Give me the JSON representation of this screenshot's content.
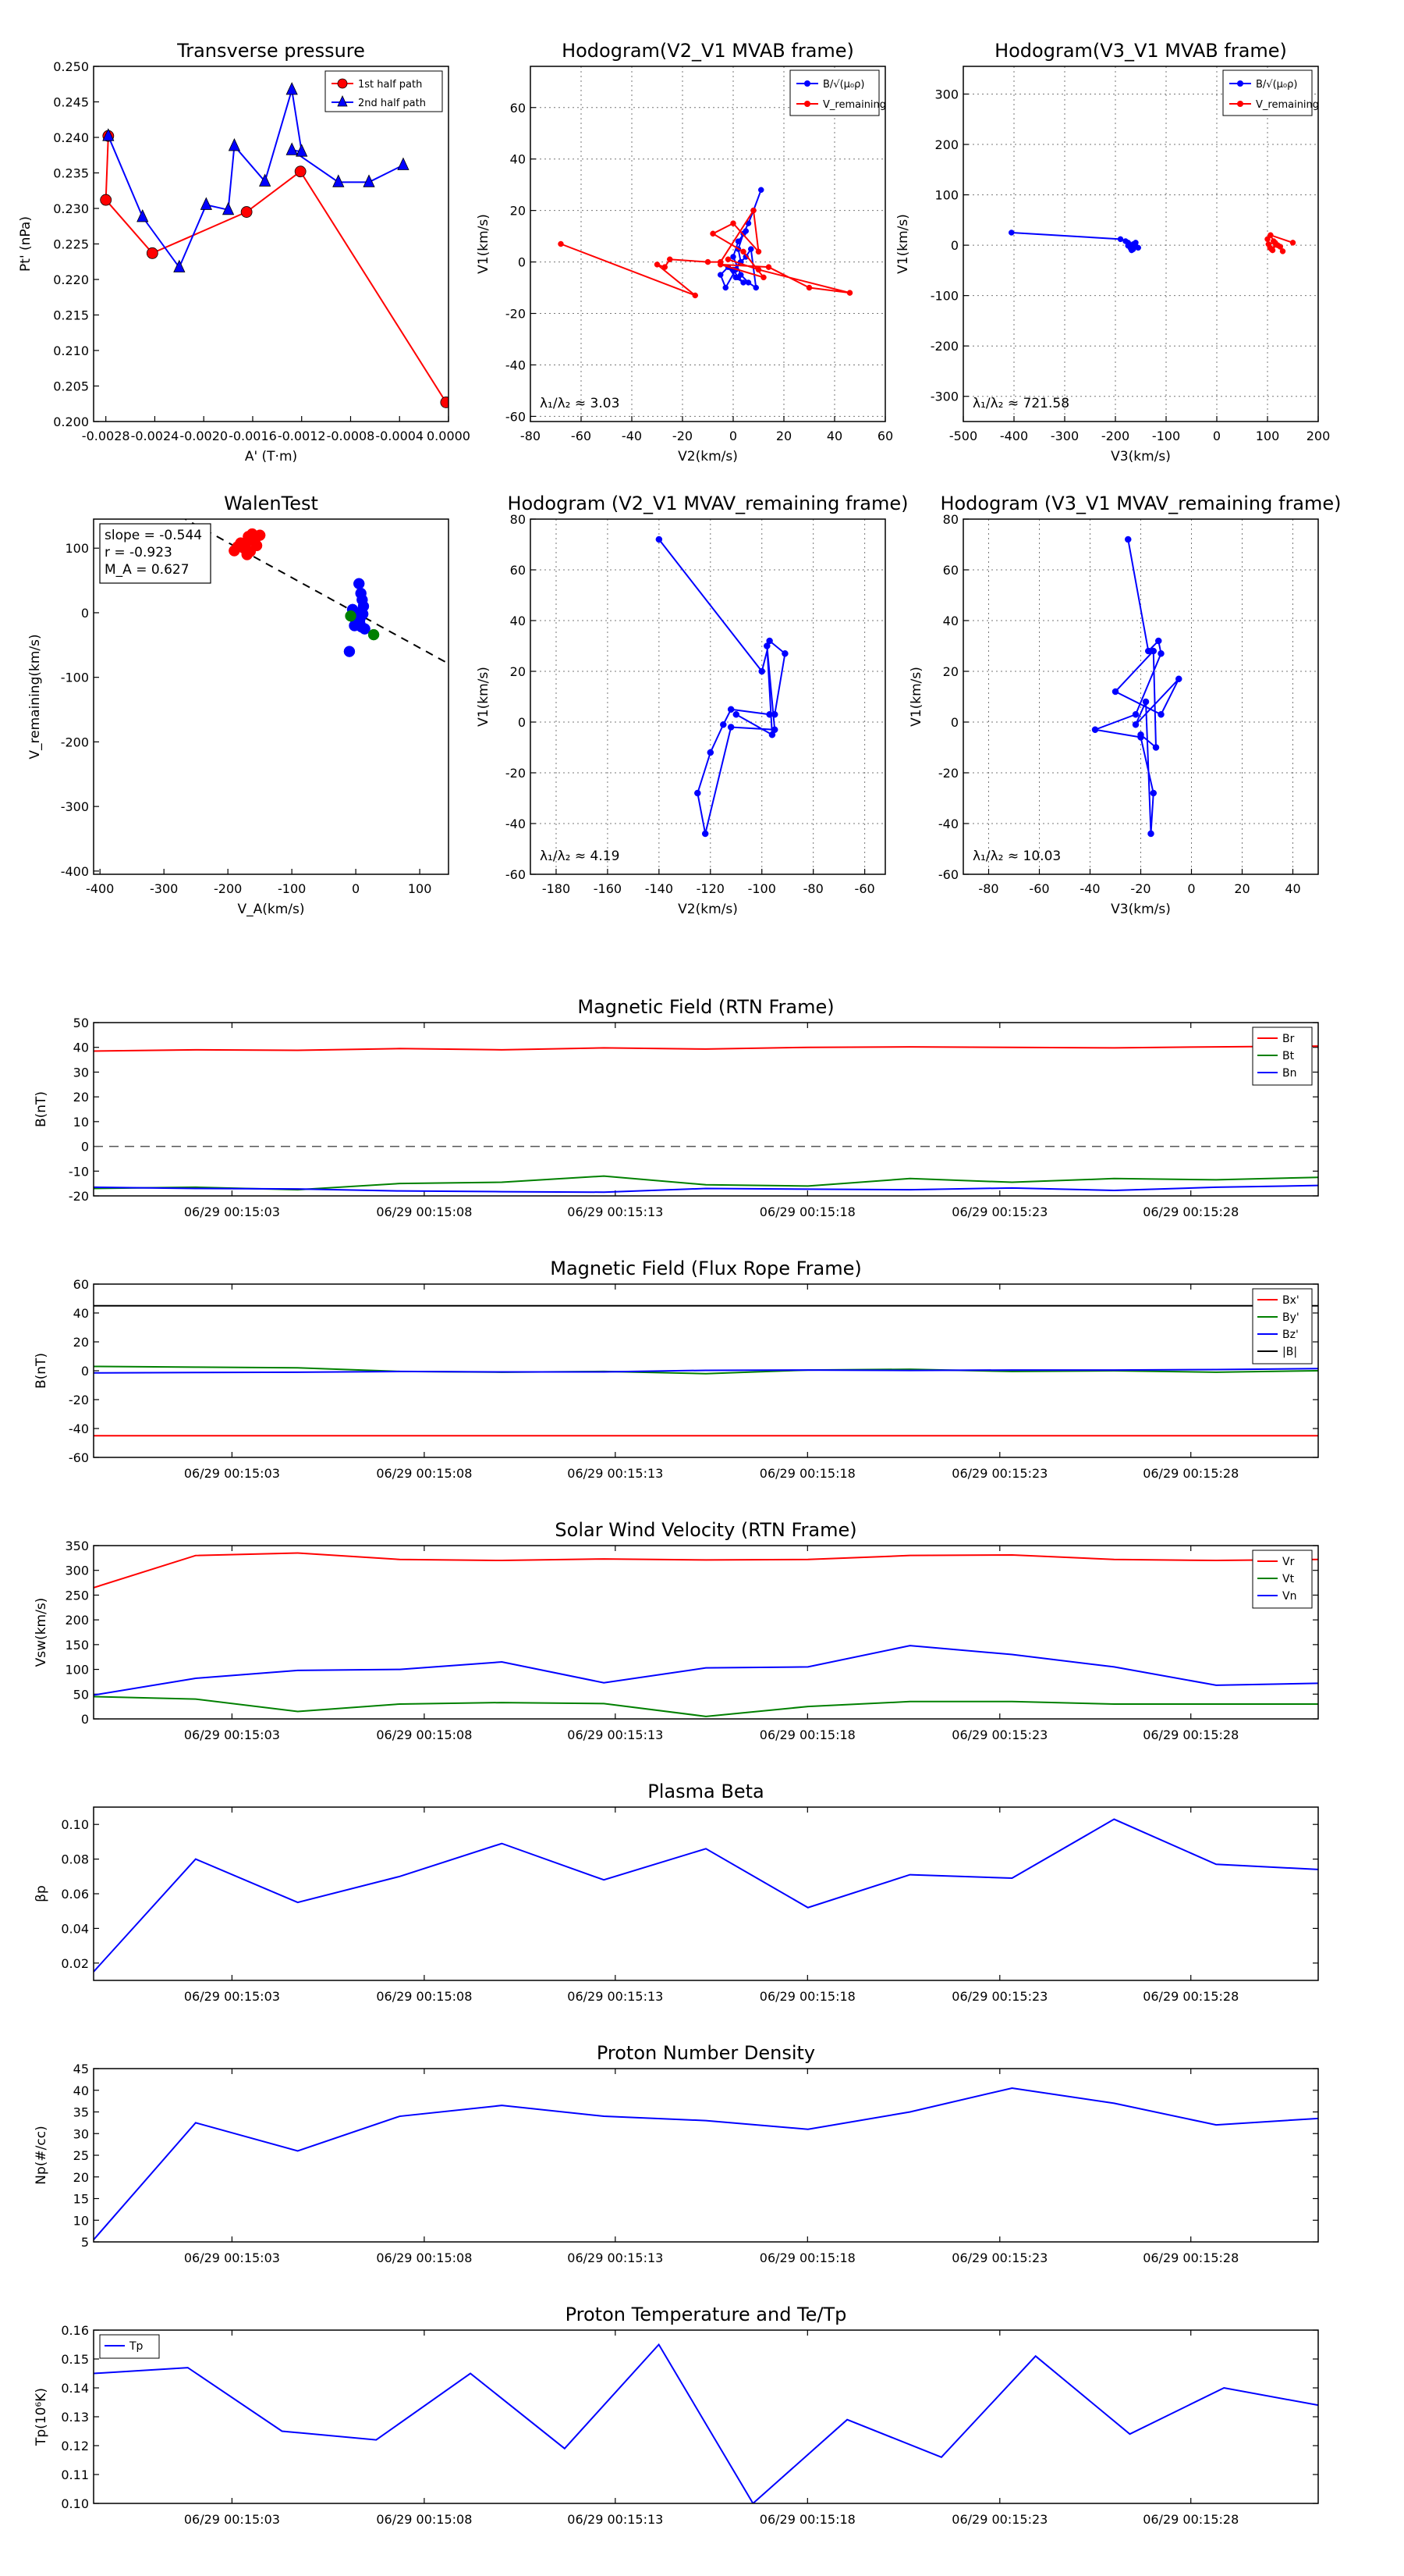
{
  "time_ticks": [
    "06/29 00:15:03",
    "06/29 00:15:08",
    "06/29 00:15:13",
    "06/29 00:15:18",
    "06/29 00:15:23",
    "06/29 00:15:28"
  ],
  "chart_data": [
    {
      "id": "tp",
      "type": "scatter",
      "title": "Transverse pressure",
      "xlabel": "A' (T·m)",
      "ylabel": "Pt' (nPa)",
      "xlim": [
        -0.0029,
        0.0
      ],
      "ylim": [
        0.2,
        0.25
      ],
      "xticks": [
        -0.0028,
        -0.0024,
        -0.002,
        -0.0016,
        -0.0012,
        -0.0008,
        -0.0004,
        0.0
      ],
      "xtick_labels": [
        "-0.0028",
        "-0.0024",
        "-0.0020",
        "-0.0016",
        "-0.0012",
        "-0.0008",
        "-0.0004",
        "0.0000"
      ],
      "yticks": [
        0.2,
        0.205,
        0.21,
        0.215,
        0.22,
        0.225,
        0.23,
        0.235,
        0.24,
        0.245,
        0.25
      ],
      "ytick_labels": [
        "0.200",
        "0.205",
        "0.210",
        "0.215",
        "0.220",
        "0.225",
        "0.230",
        "0.235",
        "0.240",
        "0.245",
        "0.250"
      ],
      "legend": [
        "1st half path",
        "2nd half path"
      ],
      "series": [
        {
          "name": "1st half path",
          "color": "#ff0000",
          "marker": "circle",
          "x": [
            -2e-05,
            -0.00121,
            -0.00165,
            -0.00242,
            -0.0028,
            -0.00278
          ],
          "y": [
            0.2027,
            0.2352,
            0.2295,
            0.2237,
            0.2312,
            0.2402
          ]
        },
        {
          "name": "2nd half path",
          "color": "#0000ff",
          "marker": "triangle",
          "x": [
            -0.00278,
            -0.0025,
            -0.0022,
            -0.00198,
            -0.0018,
            -0.00175,
            -0.0015,
            -0.00128,
            -0.0012,
            -0.00128,
            -0.0009,
            -0.00065,
            -0.00037
          ],
          "y": [
            0.2402,
            0.2288,
            0.2217,
            0.2305,
            0.2298,
            0.2388,
            0.2338,
            0.2467,
            0.238,
            0.2382,
            0.2337,
            0.2337,
            0.2361
          ]
        }
      ]
    },
    {
      "id": "h1",
      "type": "line",
      "title": "Hodogram(V2_V1 MVAB frame)",
      "xlabel": "V2(km/s)",
      "ylabel": "V1(km/s)",
      "xlim": [
        -80,
        60
      ],
      "ylim": [
        -62,
        76
      ],
      "xticks": [
        -80,
        -60,
        -40,
        -20,
        0,
        20,
        40,
        60
      ],
      "yticks": [
        -60,
        -40,
        -20,
        0,
        20,
        40,
        60
      ],
      "legend": [
        "B/√(μ₀ρ)",
        "V_remaining"
      ],
      "annotation": "λ₁/λ₂ ≈ 3.03",
      "series": [
        {
          "name": "B",
          "color": "#0000ff",
          "x": [
            11,
            8,
            6,
            4,
            2,
            3,
            1,
            -3,
            -5,
            -2,
            1,
            4,
            2,
            0,
            3,
            5,
            7,
            9,
            6,
            3,
            0,
            2,
            5
          ],
          "y": [
            28,
            20,
            15,
            11,
            5,
            0,
            -3,
            -10,
            -5,
            -2,
            -6,
            -8,
            -6,
            -3,
            0,
            2,
            5,
            -10,
            -8,
            -5,
            2,
            8,
            12
          ]
        },
        {
          "name": "V_remaining",
          "color": "#ff0000",
          "x": [
            -68,
            -15,
            -30,
            -27,
            -25,
            -10,
            -5,
            8,
            10,
            0,
            -8,
            4,
            12,
            -5,
            14,
            30,
            46,
            10,
            -2
          ],
          "y": [
            7,
            -13,
            -1,
            -2,
            1,
            0,
            0,
            20,
            4,
            15,
            11,
            4,
            -6,
            -1,
            -2,
            -10,
            -12,
            -3,
            1
          ]
        }
      ]
    },
    {
      "id": "h2",
      "type": "line",
      "title": "Hodogram(V3_V1 MVAB frame)",
      "xlabel": "V3(km/s)",
      "ylabel": "V1(km/s)",
      "xlim": [
        -500,
        200
      ],
      "ylim": [
        -350,
        355
      ],
      "xticks": [
        -500,
        -400,
        -300,
        -200,
        -100,
        0,
        100,
        200
      ],
      "yticks": [
        -300,
        -200,
        -100,
        0,
        100,
        200,
        300
      ],
      "legend": [
        "B/√(μ₀ρ)",
        "V_remaining"
      ],
      "annotation": "λ₁/λ₂ ≈ 721.58",
      "series": [
        {
          "name": "B",
          "color": "#0000ff",
          "x": [
            -405,
            -190,
            -180,
            -175,
            -170,
            -165,
            -160,
            -155,
            -165,
            -170,
            -175,
            -168,
            -160
          ],
          "y": [
            25,
            12,
            8,
            5,
            -3,
            -8,
            -2,
            -5,
            2,
            -6,
            -1,
            -10,
            5
          ]
        },
        {
          "name": "V_remaining",
          "color": "#ff0000",
          "x": [
            100,
            105,
            110,
            115,
            102,
            108,
            120,
            130,
            125,
            112,
            106,
            150
          ],
          "y": [
            12,
            -5,
            -10,
            5,
            2,
            -8,
            0,
            -12,
            -3,
            8,
            20,
            5
          ]
        }
      ]
    },
    {
      "id": "walen",
      "type": "scatter",
      "title": "WalenTest",
      "xlabel": "V_A(km/s)",
      "ylabel": "V_remaining(km/s)",
      "xlim": [
        -410,
        145
      ],
      "ylim": [
        -405,
        145
      ],
      "xticks": [
        -400,
        -300,
        -200,
        -100,
        0,
        100
      ],
      "yticks": [
        -400,
        -300,
        -200,
        -100,
        0,
        100
      ],
      "annotations": [
        "slope = -0.544",
        "r = -0.923",
        "M_A = 0.627"
      ],
      "fit_line": {
        "slope": -0.544,
        "x_range": [
          -410,
          145
        ],
        "intercept": 0
      },
      "series": [
        {
          "name": "red",
          "color": "#ff0000",
          "x": [
            -190,
            -175,
            -170,
            -165,
            -160,
            -158,
            -155,
            -165,
            -172,
            -180,
            -168,
            -162,
            -185,
            -170,
            -150,
            -163
          ],
          "y": [
            96,
            100,
            110,
            118,
            120,
            112,
            104,
            95,
            100,
            108,
            118,
            122,
            102,
            90,
            120,
            114
          ]
        },
        {
          "name": "blue",
          "color": "#0000ff",
          "x": [
            5,
            8,
            10,
            12,
            3,
            0,
            -2,
            6,
            14,
            9,
            4,
            1,
            -5,
            -10,
            7,
            11
          ],
          "y": [
            45,
            30,
            20,
            10,
            -5,
            -12,
            -20,
            -15,
            -25,
            -22,
            -18,
            0,
            5,
            -60,
            -8,
            -2
          ]
        },
        {
          "name": "green",
          "color": "#008000",
          "x": [
            28,
            -8
          ],
          "y": [
            -34,
            -5
          ]
        }
      ]
    },
    {
      "id": "h3",
      "type": "line",
      "title": "Hodogram (V2_V1 MVAV_remaining frame)",
      "xlabel": "V2(km/s)",
      "ylabel": "V1(km/s)",
      "xlim": [
        -190,
        -52
      ],
      "ylim": [
        -60,
        80
      ],
      "xticks": [
        -180,
        -160,
        -140,
        -120,
        -100,
        -80,
        -60
      ],
      "yticks": [
        -60,
        -40,
        -20,
        0,
        20,
        40,
        60,
        80
      ],
      "annotation": "λ₁/λ₂ ≈ 4.19",
      "series": [
        {
          "name": "V",
          "color": "#0000ff",
          "x": [
            -140,
            -100,
            -97,
            -91,
            -95,
            -97,
            -112,
            -115,
            -120,
            -125,
            -122,
            -112,
            -95,
            -98,
            -96,
            -110
          ],
          "y": [
            72,
            20,
            32,
            27,
            3,
            3,
            5,
            -1,
            -12,
            -28,
            -44,
            -2,
            -3,
            30,
            -5,
            3
          ]
        }
      ]
    },
    {
      "id": "h4",
      "type": "line",
      "title": "Hodogram (V3_V1 MVAV_remaining frame)",
      "xlabel": "V3(km/s)",
      "ylabel": "V1(km/s)",
      "xlim": [
        -90,
        50
      ],
      "ylim": [
        -60,
        80
      ],
      "xticks": [
        -80,
        -60,
        -40,
        -20,
        0,
        20,
        40
      ],
      "yticks": [
        -60,
        -40,
        -20,
        0,
        20,
        40,
        60,
        80
      ],
      "annotation": "λ₁/λ₂ ≈ 10.03",
      "series": [
        {
          "name": "V",
          "color": "#0000ff",
          "x": [
            -25,
            -17,
            -13,
            -12,
            -22,
            -38,
            -20,
            -15,
            -16,
            -18,
            -22,
            -5,
            -12,
            -30,
            -15,
            -14,
            -20
          ],
          "y": [
            72,
            28,
            32,
            27,
            3,
            -3,
            -6,
            -28,
            -44,
            8,
            -1,
            17,
            3,
            12,
            28,
            -10,
            -5
          ]
        }
      ]
    },
    {
      "id": "bfield_rtn",
      "type": "line",
      "title": "Magnetic Field (RTN Frame)",
      "ylabel": "B(nT)",
      "ylim": [
        -20,
        50
      ],
      "yticks": [
        -20,
        -10,
        0,
        10,
        20,
        30,
        40,
        50
      ],
      "legend": [
        "Br",
        "Bt",
        "Bn"
      ],
      "zero_line": true,
      "series": [
        {
          "name": "Br",
          "color": "#ff0000",
          "values": [
            38.5,
            39,
            38.8,
            39.5,
            39,
            39.8,
            39.3,
            40,
            40.2,
            40,
            39.8,
            40.2,
            40.5
          ]
        },
        {
          "name": "Bt",
          "color": "#008000",
          "values": [
            -17,
            -16.5,
            -17.5,
            -15,
            -14.5,
            -12,
            -15.5,
            -16,
            -13,
            -14.5,
            -13,
            -13.5,
            -12.5
          ]
        },
        {
          "name": "Bn",
          "color": "#0000ff",
          "values": [
            -16.5,
            -17,
            -17.2,
            -18,
            -18.3,
            -18.5,
            -17,
            -17.3,
            -17.5,
            -16.8,
            -17.8,
            -16.5,
            -15.8
          ]
        }
      ]
    },
    {
      "id": "bfield_fr",
      "type": "line",
      "title": "Magnetic Field (Flux Rope Frame)",
      "ylabel": "B(nT)",
      "ylim": [
        -60,
        60
      ],
      "yticks": [
        -60,
        -40,
        -20,
        0,
        20,
        40,
        60
      ],
      "legend": [
        "Bx'",
        "By'",
        "Bz'",
        "|B|"
      ],
      "series": [
        {
          "name": "Bx'",
          "color": "#ff0000",
          "values": [
            -45,
            -45,
            -45,
            -45,
            -45,
            -45,
            -45,
            -45,
            -45,
            -45,
            -45,
            -45,
            -45
          ]
        },
        {
          "name": "By'",
          "color": "#008000",
          "values": [
            3,
            2.5,
            2,
            -0.5,
            -1,
            -0.5,
            -2,
            0.5,
            1,
            -0.5,
            0,
            -1,
            0
          ]
        },
        {
          "name": "Bz'",
          "color": "#0000ff",
          "values": [
            -1.5,
            -1.2,
            -1,
            -0.5,
            -0.8,
            -0.8,
            0.3,
            0.5,
            0.2,
            0.5,
            0.5,
            0.8,
            1.5
          ]
        },
        {
          "name": "|B|",
          "color": "#000000",
          "values": [
            45,
            45,
            45,
            45,
            45,
            45,
            45,
            45,
            45,
            45,
            45,
            45,
            45
          ]
        }
      ]
    },
    {
      "id": "vsw",
      "type": "line",
      "title": "Solar Wind Velocity (RTN Frame)",
      "ylabel": "Vsw(km/s)",
      "ylim": [
        0,
        350
      ],
      "yticks": [
        0,
        50,
        100,
        150,
        200,
        250,
        300,
        350
      ],
      "legend": [
        "Vr",
        "Vt",
        "Vn"
      ],
      "series": [
        {
          "name": "Vr",
          "color": "#ff0000",
          "values": [
            265,
            330,
            335,
            322,
            320,
            323,
            321,
            322,
            330,
            331,
            322,
            320,
            322
          ]
        },
        {
          "name": "Vt",
          "color": "#008000",
          "values": [
            45,
            40,
            15,
            30,
            33,
            31,
            5,
            25,
            35,
            35,
            30,
            30,
            30
          ]
        },
        {
          "name": "Vn",
          "color": "#0000ff",
          "values": [
            48,
            82,
            98,
            100,
            115,
            73,
            103,
            105,
            148,
            130,
            105,
            68,
            72
          ]
        }
      ]
    },
    {
      "id": "beta",
      "type": "line",
      "title": "Plasma Beta",
      "ylabel": "βp",
      "ylim": [
        0.01,
        0.11
      ],
      "yticks": [
        0.02,
        0.04,
        0.06,
        0.08,
        0.1
      ],
      "ytick_labels": [
        "0.02",
        "0.04",
        "0.06",
        "0.08",
        "0.10"
      ],
      "series": [
        {
          "name": "beta",
          "color": "#0000ff",
          "values": [
            0.015,
            0.08,
            0.055,
            0.07,
            0.089,
            0.068,
            0.086,
            0.052,
            0.071,
            0.069,
            0.103,
            0.077,
            0.074
          ]
        }
      ]
    },
    {
      "id": "np",
      "type": "line",
      "title": "Proton Number Density",
      "ylabel": "Np(#/cc)",
      "ylim": [
        5,
        45
      ],
      "yticks": [
        5,
        10,
        15,
        20,
        25,
        30,
        35,
        40,
        45
      ],
      "series": [
        {
          "name": "Np",
          "color": "#0000ff",
          "values": [
            5.5,
            32.5,
            26,
            34,
            36.5,
            34,
            33,
            31,
            35,
            40.5,
            37,
            32,
            33.5
          ]
        }
      ]
    },
    {
      "id": "tp_temp",
      "type": "line",
      "title": "Proton Temperature and Te/Tp",
      "ylabel": "Tp(10⁶K)",
      "ylim": [
        0.1,
        0.16
      ],
      "yticks": [
        0.1,
        0.11,
        0.12,
        0.13,
        0.14,
        0.15,
        0.16
      ],
      "ytick_labels": [
        "0.10",
        "0.11",
        "0.12",
        "0.13",
        "0.14",
        "0.15",
        "0.16"
      ],
      "legend": [
        "Tp"
      ],
      "series": [
        {
          "name": "Tp",
          "color": "#0000ff",
          "values": [
            0.145,
            0.147,
            0.125,
            0.122,
            0.145,
            0.119,
            0.155,
            0.1,
            0.129,
            0.116,
            0.151,
            0.124,
            0.14,
            0.134
          ]
        }
      ]
    }
  ]
}
